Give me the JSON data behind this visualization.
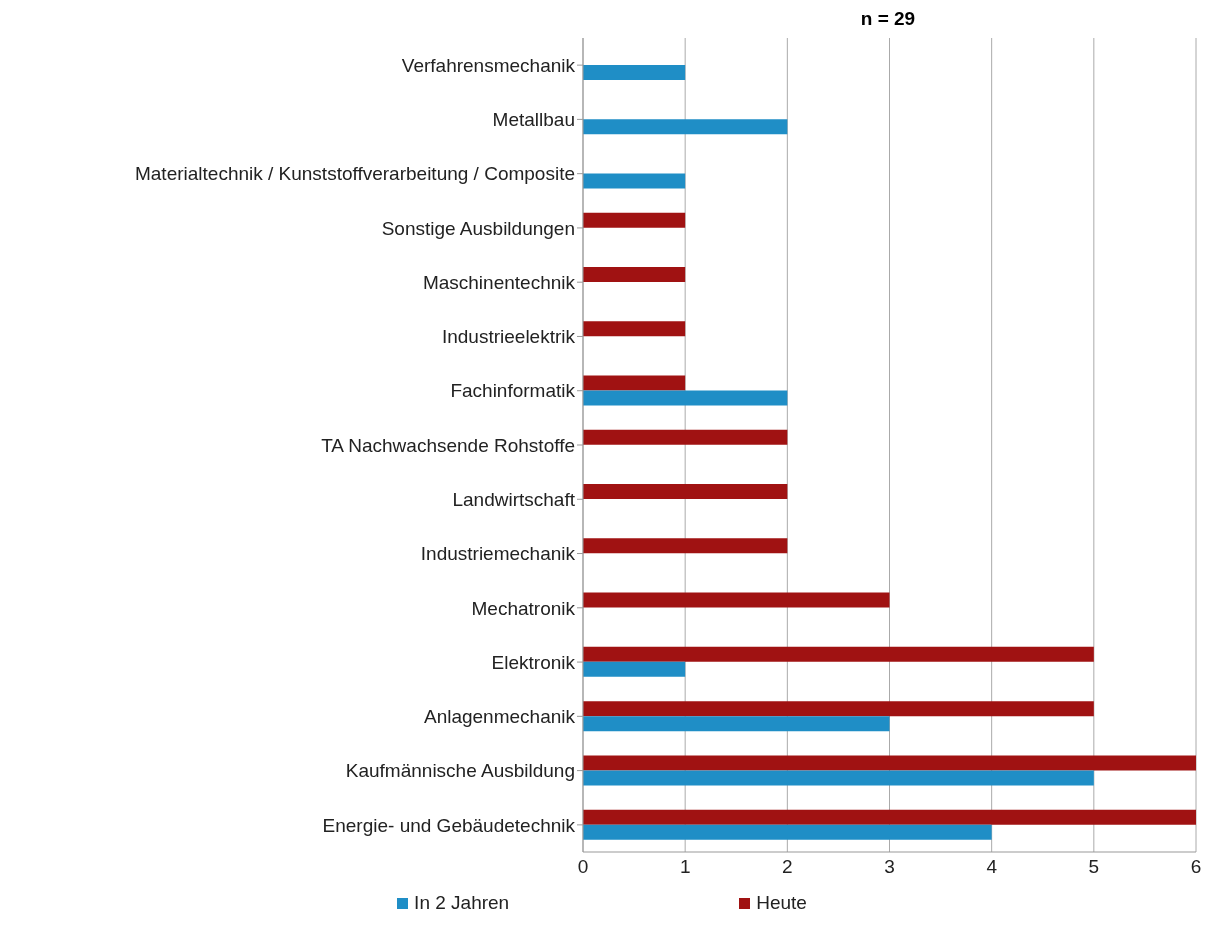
{
  "chart_data": {
    "type": "bar",
    "orientation": "horizontal",
    "title": "n = 29",
    "categories": [
      "Verfahrensmechanik",
      "Metallbau",
      "Materialtechnik / Kunststoffverarbeitung / Composite",
      "Sonstige Ausbildungen",
      "Maschinentechnik",
      "Industrieelektrik",
      "Fachinformatik",
      "TA Nachwachsende Rohstoffe",
      "Landwirtschaft",
      "Industriemechanik",
      "Mechatronik",
      "Elektronik",
      "Anlagenmechanik",
      "Kaufmännische Ausbildung",
      "Energie- und Gebäudetechnik"
    ],
    "series": [
      {
        "name": "In 2 Jahren",
        "color": "#1f8ec6",
        "values": [
          1,
          2,
          1,
          null,
          null,
          null,
          2,
          null,
          null,
          null,
          null,
          1,
          3,
          5,
          4
        ]
      },
      {
        "name": "Heute",
        "color": "#a01212",
        "values": [
          null,
          null,
          null,
          1,
          1,
          1,
          1,
          2,
          2,
          2,
          3,
          5,
          5,
          6,
          6
        ]
      }
    ],
    "xlim": [
      0,
      6
    ],
    "xticks": [
      0,
      1,
      2,
      3,
      4,
      5,
      6
    ],
    "grid": "x",
    "legend": "bottom"
  }
}
